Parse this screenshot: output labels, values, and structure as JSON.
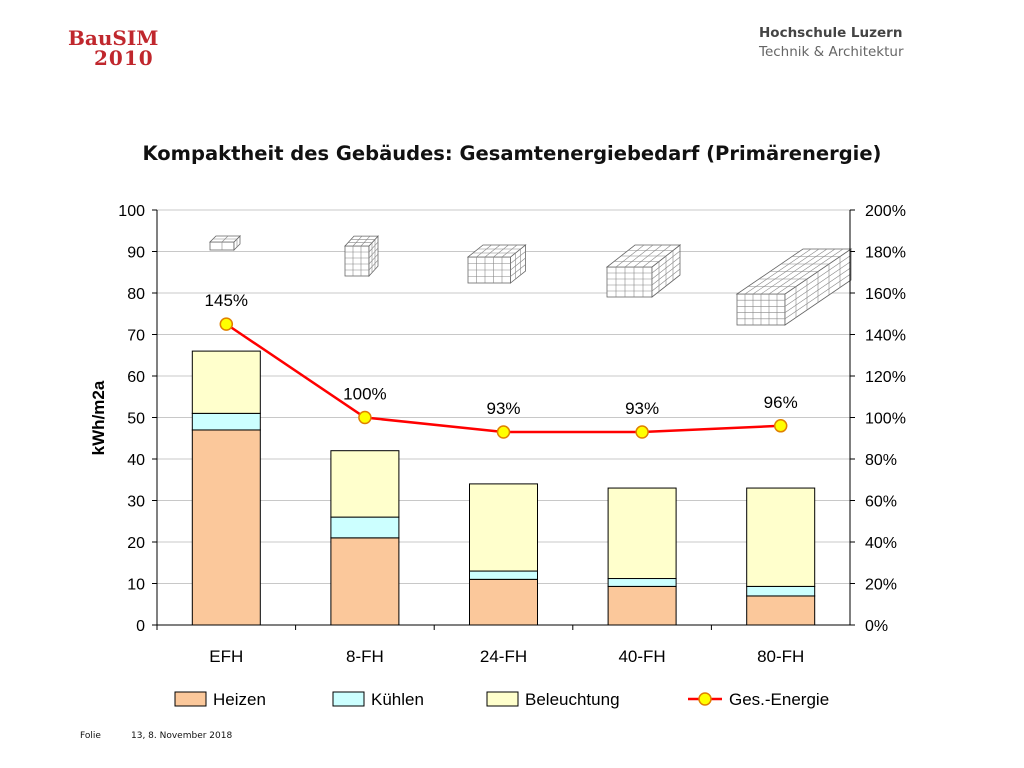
{
  "header": {
    "logo_left_line1": "BauSIM",
    "logo_left_line2": "2010",
    "logo_right_line1": "Hochschule Luzern",
    "logo_right_line2": "Technik & Architektur"
  },
  "footer": {
    "folie_label": "Folie",
    "page_info": "13, 8. November 2018"
  },
  "colors": {
    "heizen": "#fbc89b",
    "kuehlen": "#ccffff",
    "beleuchtung": "#ffffcc",
    "line": "#ff0000",
    "marker": "#ffff00",
    "marker_edge": "#e08000"
  },
  "chart_data": {
    "type": "bar",
    "title": "Kompaktheit des Gebäudes: Gesamtenergiebedarf (Primärenergie)",
    "categories": [
      "EFH",
      "8-FH",
      "24-FH",
      "40-FH",
      "80-FH"
    ],
    "ylabel": "kWh/m2a",
    "ylim": [
      0,
      100
    ],
    "yticks": [
      "0",
      "10",
      "20",
      "30",
      "40",
      "50",
      "60",
      "70",
      "80",
      "90",
      "100"
    ],
    "y2lim": [
      0,
      200
    ],
    "y2ticks": [
      "0%",
      "20%",
      "40%",
      "60%",
      "80%",
      "100%",
      "120%",
      "140%",
      "160%",
      "180%",
      "200%"
    ],
    "stacked": true,
    "series": [
      {
        "name": "Heizen",
        "values": [
          47,
          21,
          11,
          9.3,
          7
        ]
      },
      {
        "name": "Kühlen",
        "values": [
          4,
          5,
          2,
          1.9,
          2.3
        ]
      },
      {
        "name": "Beleuchtung",
        "values": [
          15,
          16,
          21,
          21.8,
          23.7
        ]
      }
    ],
    "line_series": {
      "name": "Ges.-Energie",
      "axis": "secondary",
      "values": [
        145,
        100,
        93,
        93,
        96
      ],
      "labels": [
        "145%",
        "100%",
        "93%",
        "93%",
        "96%"
      ]
    },
    "legend_position": "bottom",
    "grid": true
  }
}
